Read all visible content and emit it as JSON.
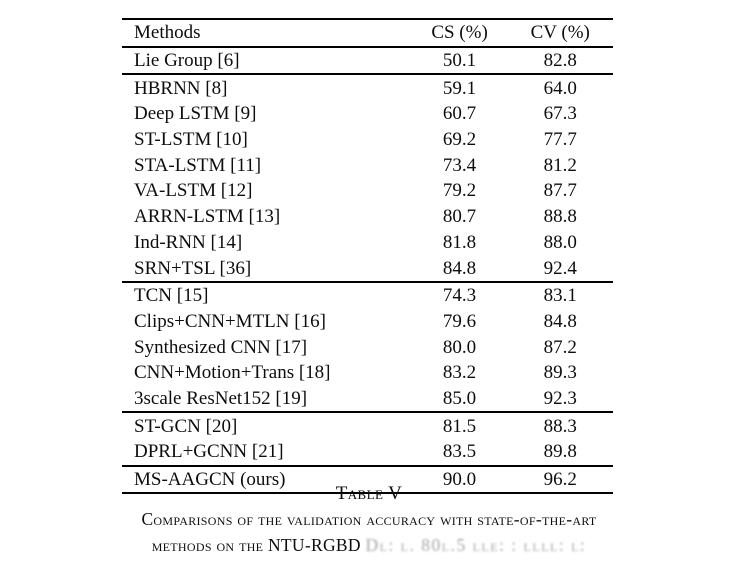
{
  "page": {
    "background": "#ffffff",
    "text_color": "#0d0d0d"
  },
  "table": {
    "headers": [
      "Methods",
      "CS (%)",
      "CV (%)"
    ],
    "groups": [
      [
        [
          "Lie Group [6]",
          "50.1",
          "82.8"
        ]
      ],
      [
        [
          "HBRNN [8]",
          "59.1",
          "64.0"
        ],
        [
          "Deep LSTM [9]",
          "60.7",
          "67.3"
        ],
        [
          "ST-LSTM [10]",
          "69.2",
          "77.7"
        ],
        [
          "STA-LSTM [11]",
          "73.4",
          "81.2"
        ],
        [
          "VA-LSTM [12]",
          "79.2",
          "87.7"
        ],
        [
          "ARRN-LSTM [13]",
          "80.7",
          "88.8"
        ],
        [
          "Ind-RNN [14]",
          "81.8",
          "88.0"
        ],
        [
          "SRN+TSL [36]",
          "84.8",
          "92.4"
        ]
      ],
      [
        [
          "TCN [15]",
          "74.3",
          "83.1"
        ],
        [
          "Clips+CNN+MTLN [16]",
          "79.6",
          "84.8"
        ],
        [
          "Synthesized CNN [17]",
          "80.0",
          "87.2"
        ],
        [
          "CNN+Motion+Trans [18]",
          "83.2",
          "89.3"
        ],
        [
          "3scale ResNet152 [19]",
          "85.0",
          "92.3"
        ]
      ],
      [
        [
          "ST-GCN [20]",
          "81.5",
          "88.3"
        ],
        [
          "DPRL+GCNN [21]",
          "83.5",
          "89.8"
        ]
      ],
      [
        [
          "MS-AAGCN (ours)",
          "90.0",
          "96.2"
        ]
      ]
    ]
  },
  "caption": {
    "label": "Table V",
    "line1": "Comparisons of the validation accuracy with state-of-the-art",
    "line2_prefix": "methods on the NTU-RGBD ",
    "line2_faded": "Dl: l. 80l.5 lle: : llll: l:"
  }
}
